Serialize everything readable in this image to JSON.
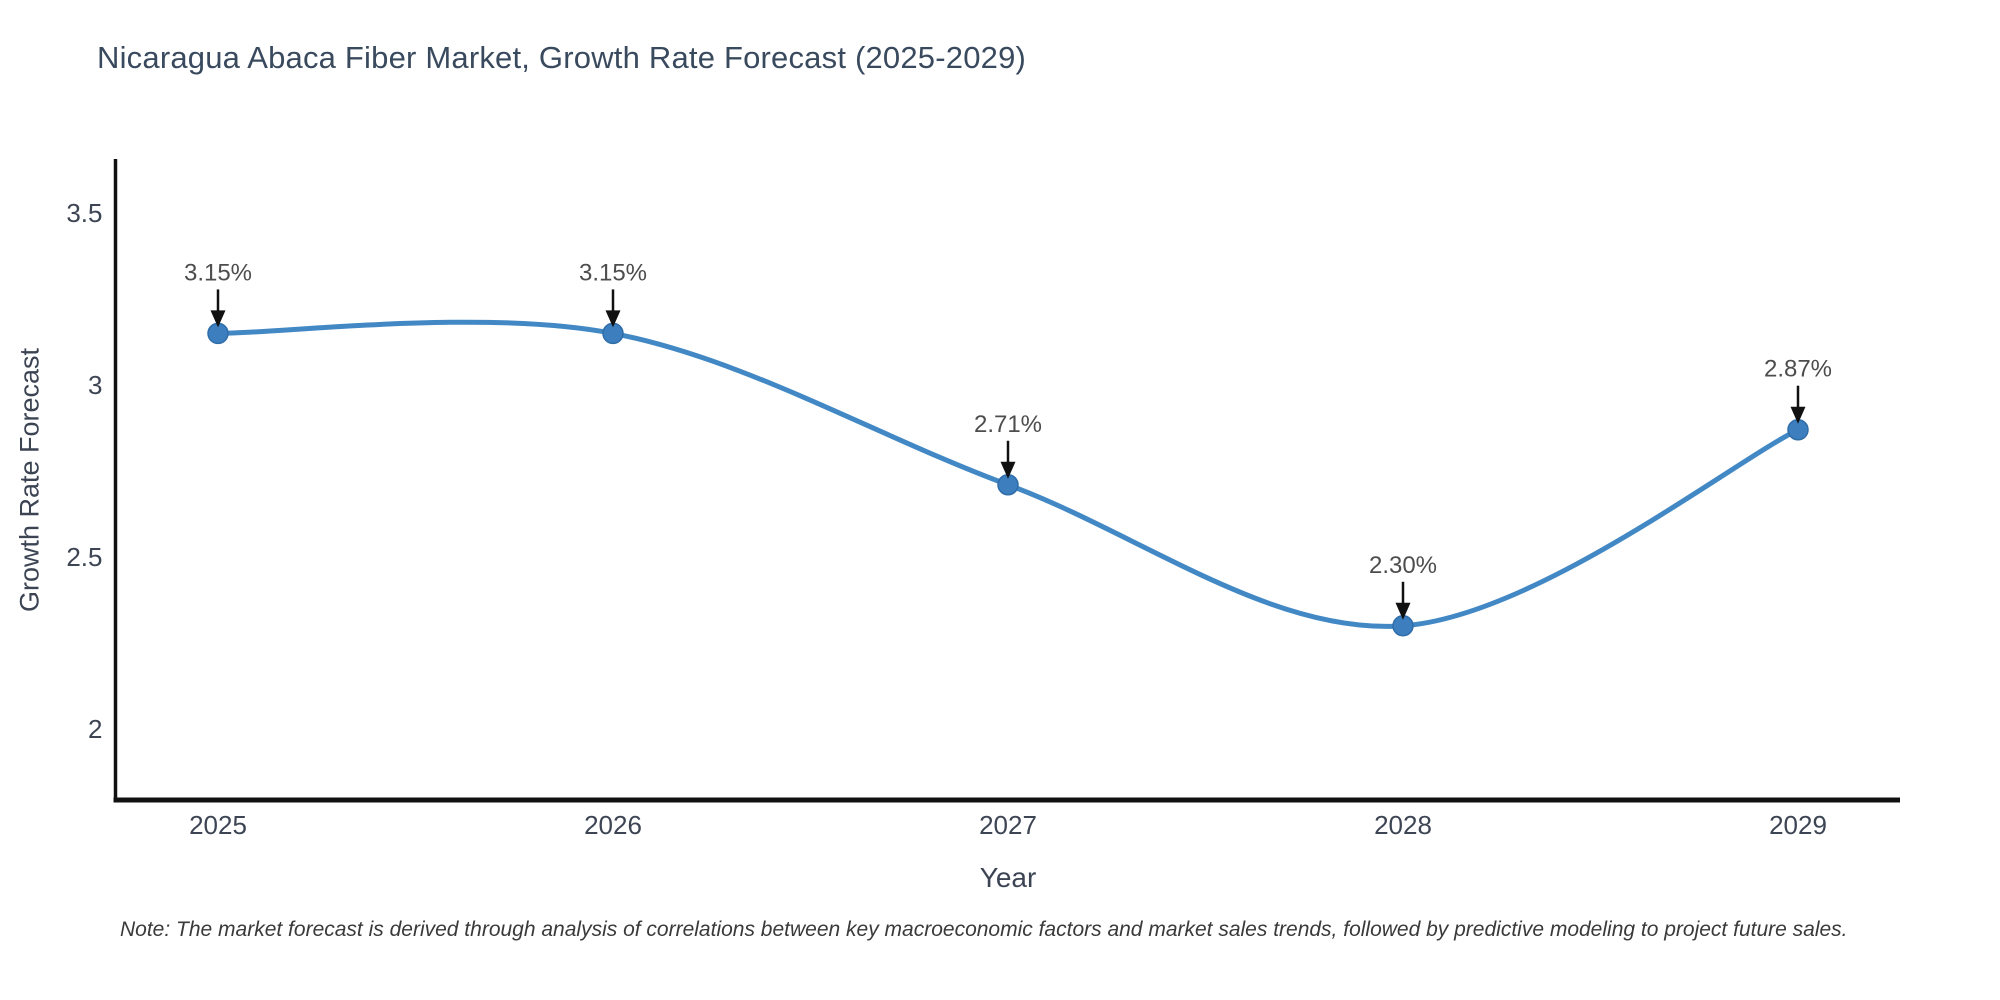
{
  "chart_data": {
    "type": "line",
    "line_shape": "spline",
    "title": "Nicaragua Abaca Fiber Market, Growth Rate Forecast (2025-2029)",
    "xlabel": "Year",
    "ylabel": "Growth Rate Forecast",
    "categories": [
      "2025",
      "2026",
      "2027",
      "2028",
      "2029"
    ],
    "series": [
      {
        "name": "Growth Rate Forecast",
        "values": [
          3.15,
          3.15,
          2.71,
          2.3,
          2.87
        ],
        "point_labels": [
          "3.15%",
          "3.15%",
          "2.71%",
          "2.30%",
          "2.87%"
        ]
      }
    ],
    "yticks": {
      "values": [
        3.5,
        3.0,
        2.5,
        2.0
      ],
      "labels": [
        "3.5",
        "3",
        "2.5",
        "2"
      ]
    },
    "ylim": [
      1.79,
      3.65
    ],
    "grid": false,
    "legend_position": "none",
    "annotations_style": "value label with down arrow to marker",
    "colors": {
      "line": "#4288c5",
      "marker": "#3d7ebf",
      "marker_edge": "#2f6da9",
      "axis": "#111111",
      "arrow": "#111111",
      "title_text": "#3a4a5e",
      "tick_text": "#3d4554",
      "annotation_text": "#4d4d4d",
      "note_text": "#3a3a3a"
    }
  },
  "note": {
    "text": "Note: The market forecast is derived through analysis of correlations between key macroeconomic factors and market sales trends, followed by predictive modeling to project future sales."
  }
}
